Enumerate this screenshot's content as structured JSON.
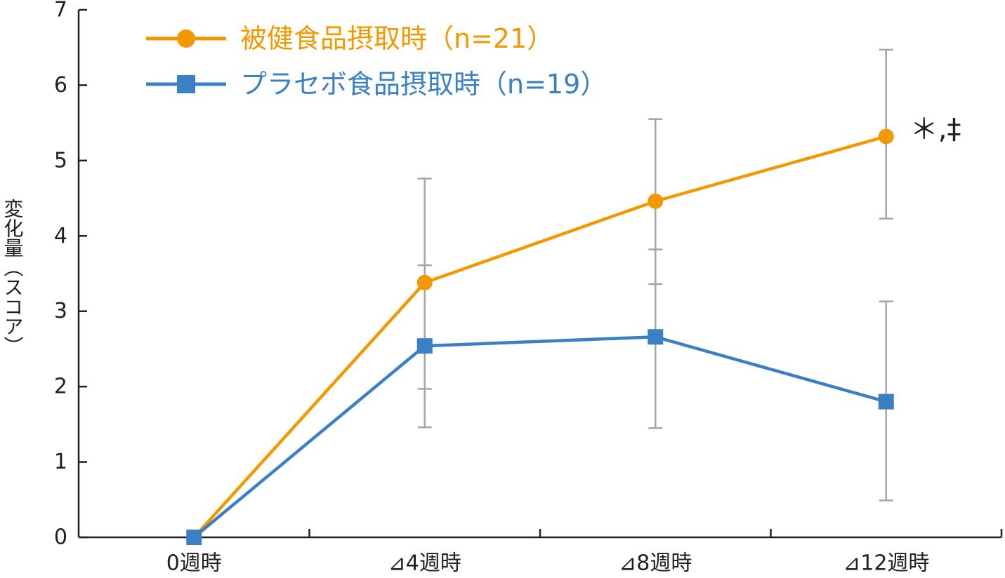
{
  "chart_data": {
    "type": "line",
    "title": "",
    "xlabel": "",
    "ylabel": "変化量（スコア）",
    "categories": [
      "0週時",
      "⊿4週時",
      "⊿8週時",
      "⊿12週時"
    ],
    "ylim": [
      0,
      7
    ],
    "yticks": [
      "0",
      "1",
      "2",
      "3",
      "4",
      "5",
      "6",
      "7"
    ],
    "grid": false,
    "legend_position": "top-left",
    "series": [
      {
        "name": "被健食品摂取時（n=21）",
        "color": "#f39800",
        "marker": "circle",
        "values": [
          0,
          3.38,
          4.46,
          5.32
        ],
        "error_upper": [
          0,
          4.76,
          5.55,
          6.47
        ],
        "error_lower": [
          0,
          1.97,
          3.36,
          4.23
        ]
      },
      {
        "name": "プラセボ食品摂取時（n=19）",
        "color": "#3b7fc4",
        "marker": "square",
        "values": [
          0,
          2.54,
          2.66,
          1.8
        ],
        "error_upper": [
          0,
          3.61,
          3.82,
          3.13
        ],
        "error_lower": [
          0,
          1.46,
          1.45,
          0.49
        ]
      }
    ],
    "errorbar_color": "#a5a5a5",
    "axis_color": "#231f20",
    "annotations": [
      {
        "text": "＊,‡",
        "x": "⊿12週時",
        "y": 5.32,
        "series": 0
      }
    ]
  }
}
